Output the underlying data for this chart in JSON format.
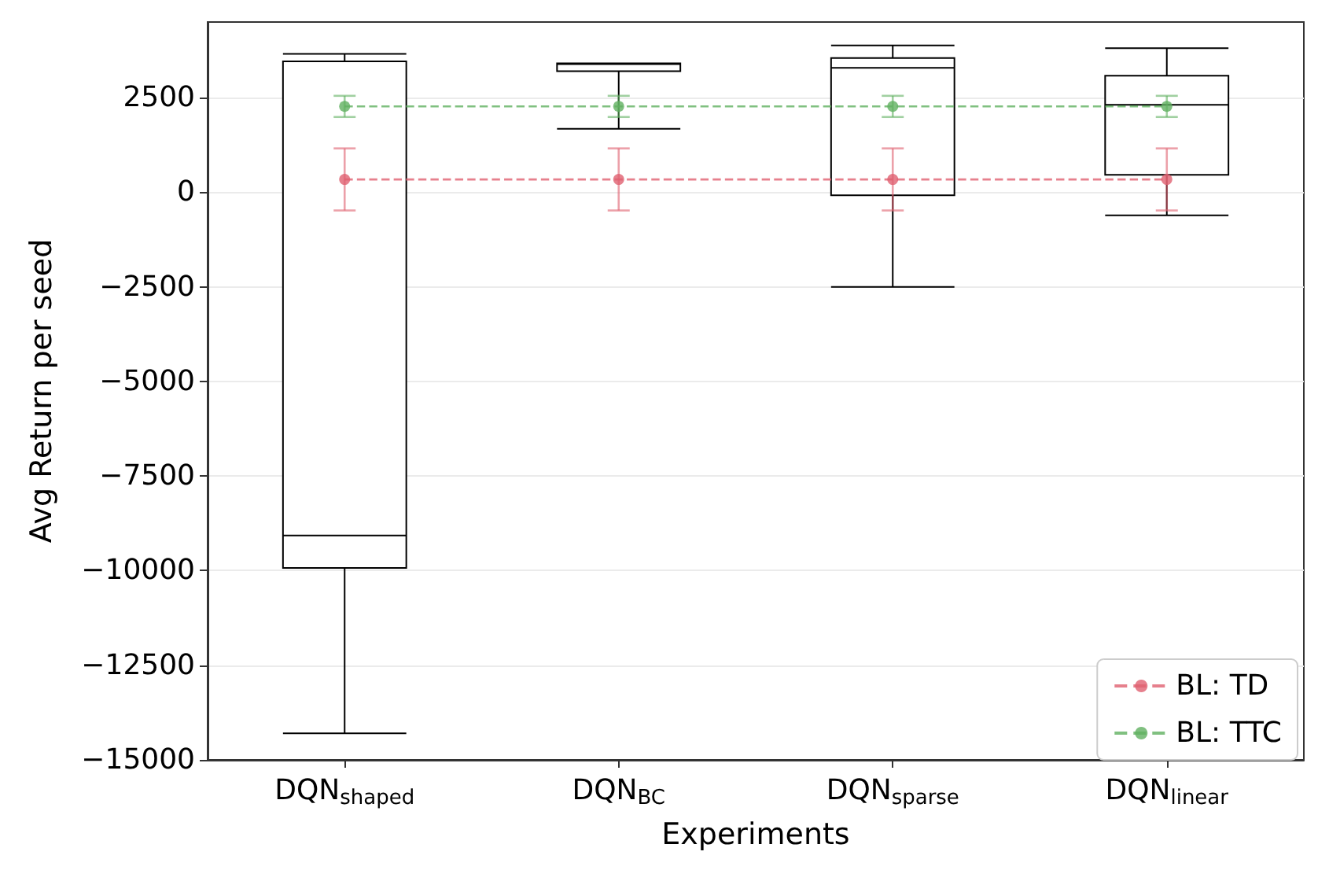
{
  "chart_data": {
    "type": "box",
    "xlabel": "Experiments",
    "ylabel": "Avg Return per seed",
    "categories": [
      "DQN$_{shaped}$",
      "DQN$_{BC}$",
      "DQN$_{sparse}$",
      "DQN$_{linear}$"
    ],
    "boxes": [
      {
        "low": -14300,
        "q1": -9930,
        "median": -9070,
        "q3": 3460,
        "high": 3660
      },
      {
        "low": 1680,
        "q1": 3200,
        "median": 3390,
        "q3": 3410,
        "high": 3410
      },
      {
        "low": -2500,
        "q1": -80,
        "median": 3290,
        "q3": 3550,
        "high": 3880
      },
      {
        "low": -610,
        "q1": 460,
        "median": 2310,
        "q3": 3080,
        "high": 3810
      }
    ],
    "color": "#000000",
    "series": [
      {
        "type": "line",
        "name": "BL: TD",
        "color": "#e06070",
        "values": [
          340,
          340,
          340,
          340
        ],
        "errors": [
          820,
          820,
          820,
          820
        ]
      },
      {
        "type": "line",
        "name": "BL: TTC",
        "color": "#60b060",
        "values": [
          2270,
          2270,
          2270,
          2270
        ],
        "errors": [
          280,
          280,
          280,
          280
        ]
      }
    ],
    "marker": "circle",
    "line_style": "dashed",
    "ylim": [
      -15000,
      4500
    ],
    "yticks": [
      -15000,
      -12500,
      -10000,
      -7500,
      -5000,
      -2500,
      0,
      2500
    ],
    "grid": "y",
    "legend": "bottom right"
  }
}
